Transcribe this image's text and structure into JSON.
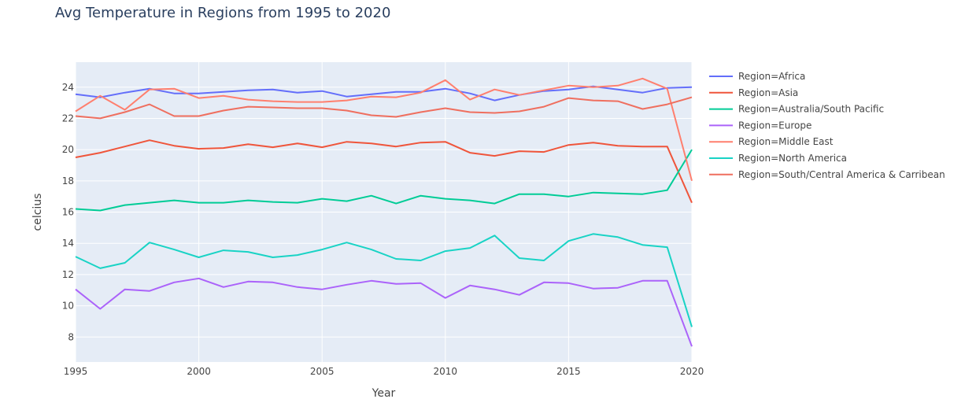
{
  "chart_data": {
    "type": "line",
    "title": "Avg Temperature in Regions from 1995 to 2020",
    "xlabel": "Year",
    "ylabel": "celcius",
    "xlim": [
      1995,
      2020
    ],
    "ylim": [
      6.4,
      25.6
    ],
    "x_ticks": [
      1995,
      2000,
      2005,
      2010,
      2015,
      2020
    ],
    "y_ticks": [
      8,
      10,
      12,
      14,
      16,
      18,
      20,
      22,
      24
    ],
    "grid": true,
    "legend_position": "right",
    "x": [
      1995,
      1996,
      1997,
      1998,
      1999,
      2000,
      2001,
      2002,
      2003,
      2004,
      2005,
      2006,
      2007,
      2008,
      2009,
      2010,
      2011,
      2012,
      2013,
      2014,
      2015,
      2016,
      2017,
      2018,
      2019,
      2020
    ],
    "series": [
      {
        "name": "Region=Africa",
        "color": "#636efa",
        "values": [
          23.55,
          23.35,
          23.65,
          23.9,
          23.6,
          23.6,
          23.7,
          23.8,
          23.85,
          23.65,
          23.75,
          23.4,
          23.55,
          23.7,
          23.7,
          23.9,
          23.6,
          23.15,
          23.5,
          23.75,
          23.85,
          24.05,
          23.85,
          23.65,
          23.95,
          24.0
        ]
      },
      {
        "name": "Region=Asia",
        "color": "#ef553b",
        "values": [
          19.5,
          19.8,
          20.2,
          20.6,
          20.25,
          20.05,
          20.1,
          20.35,
          20.15,
          20.4,
          20.15,
          20.5,
          20.4,
          20.2,
          20.45,
          20.5,
          19.8,
          19.6,
          19.9,
          19.85,
          20.3,
          20.45,
          20.25,
          20.2,
          20.2,
          16.6
        ]
      },
      {
        "name": "Region=Australia/South Pacific",
        "color": "#00cc96",
        "values": [
          16.2,
          16.1,
          16.45,
          16.6,
          16.75,
          16.6,
          16.6,
          16.75,
          16.65,
          16.6,
          16.85,
          16.7,
          17.05,
          16.55,
          17.05,
          16.85,
          16.75,
          16.55,
          17.15,
          17.15,
          17.0,
          17.25,
          17.2,
          17.15,
          17.4,
          20.0
        ]
      },
      {
        "name": "Region=Europe",
        "color": "#ab63fa",
        "values": [
          11.05,
          9.8,
          11.05,
          10.95,
          11.5,
          11.75,
          11.2,
          11.55,
          11.5,
          11.2,
          11.05,
          11.35,
          11.6,
          11.4,
          11.45,
          10.5,
          11.3,
          11.05,
          10.7,
          11.5,
          11.45,
          11.1,
          11.15,
          11.6,
          11.6,
          7.4
        ]
      },
      {
        "name": "Region=Middle East",
        "color": "#ff7f6e",
        "values": [
          22.45,
          23.45,
          22.55,
          23.85,
          23.9,
          23.3,
          23.45,
          23.2,
          23.1,
          23.05,
          23.05,
          23.15,
          23.4,
          23.35,
          23.65,
          24.45,
          23.2,
          23.85,
          23.5,
          23.8,
          24.1,
          24.0,
          24.1,
          24.55,
          23.9,
          18.0
        ]
      },
      {
        "name": "Region=North America",
        "color": "#19d3c5",
        "values": [
          13.15,
          12.4,
          12.75,
          14.05,
          13.6,
          13.1,
          13.55,
          13.45,
          13.1,
          13.25,
          13.6,
          14.05,
          13.6,
          13.0,
          12.9,
          13.5,
          13.7,
          14.5,
          13.05,
          12.9,
          14.15,
          14.6,
          14.4,
          13.9,
          13.75,
          8.65
        ]
      },
      {
        "name": "Region=South/Central America & Carribean",
        "color": "#ef6f5f",
        "values": [
          22.15,
          22.0,
          22.4,
          22.9,
          22.15,
          22.15,
          22.5,
          22.75,
          22.7,
          22.65,
          22.65,
          22.5,
          22.2,
          22.1,
          22.4,
          22.65,
          22.4,
          22.35,
          22.45,
          22.75,
          23.3,
          23.15,
          23.1,
          22.6,
          22.9,
          23.35
        ]
      }
    ]
  }
}
